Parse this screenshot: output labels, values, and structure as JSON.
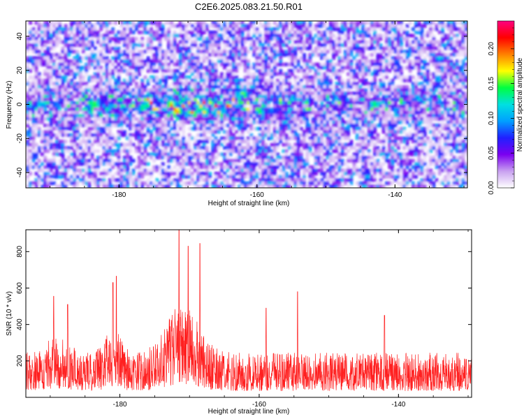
{
  "title": "C2E6.2025.083.21.50.R01",
  "chart_data": [
    {
      "type": "heatmap",
      "title": "C2E6.2025.083.21.50.R01",
      "xlabel": "Height of straight line (km)",
      "ylabel": "Frequency (Hz)",
      "xlim": [
        -193.5,
        -129.5
      ],
      "ylim": [
        -49,
        49
      ],
      "x_ticks": [
        -180,
        -160,
        -140
      ],
      "x_tick_labels": [
        "-180",
        "-160",
        "-140"
      ],
      "y_ticks": [
        -40,
        -20,
        0,
        20,
        40
      ],
      "y_tick_labels": [
        "-40",
        "-20",
        "0",
        "20",
        "40"
      ],
      "colorbar": {
        "label": "Normalized spectral amplitude",
        "range": [
          0,
          0.24
        ],
        "ticks": [
          0,
          0.05,
          0.1,
          0.15,
          0.2
        ],
        "tick_labels": [
          "0.00",
          "0.05",
          "0.10",
          "0.15",
          "0.20"
        ],
        "colormap": [
          "#ffffff",
          "#c8a0f0",
          "#7b00f0",
          "#2020ff",
          "#00a0ff",
          "#00e0e0",
          "#00ff40",
          "#ffff00",
          "#ff8000",
          "#ff0000",
          "#ff0080"
        ]
      },
      "hot_spots": [
        {
          "x": -183.5,
          "y": 0,
          "amp": 0.2
        },
        {
          "x": -176.5,
          "y": -2,
          "amp": 0.18
        },
        {
          "x": -171.5,
          "y": -4,
          "amp": 0.23
        },
        {
          "x": -169.5,
          "y": -5,
          "amp": 0.2
        },
        {
          "x": -167.5,
          "y": -4,
          "amp": 0.18
        },
        {
          "x": -165,
          "y": -4,
          "amp": 0.15
        },
        {
          "x": -162,
          "y": 7,
          "amp": 0.17
        },
        {
          "x": -159.5,
          "y": -4,
          "amp": 0.16
        },
        {
          "x": -143,
          "y": 0,
          "amp": 0.18
        },
        {
          "x": -133.5,
          "y": 27,
          "amp": 0.15
        },
        {
          "x": -191.5,
          "y": 0,
          "amp": 0.14
        },
        {
          "x": -136.5,
          "y": 3,
          "amp": 0.12
        }
      ],
      "grid": false
    },
    {
      "type": "line",
      "xlabel": "Height of straight line (km)",
      "ylabel": "SNR (10 * v/v)",
      "xlim": [
        -193.5,
        -129.5
      ],
      "ylim": [
        0,
        920
      ],
      "x_ticks": [
        -180,
        -160,
        -140
      ],
      "x_tick_labels": [
        "-180",
        "-160",
        "-140"
      ],
      "y_ticks": [
        200,
        400,
        600,
        800
      ],
      "y_tick_labels": [
        "200",
        "400",
        "600",
        "800"
      ],
      "series_color": "#ff2020",
      "peaks": [
        {
          "x": -181,
          "y": 630
        },
        {
          "x": -180.5,
          "y": 665
        },
        {
          "x": -171.5,
          "y": 920
        },
        {
          "x": -170.2,
          "y": 830
        },
        {
          "x": -168.5,
          "y": 845
        },
        {
          "x": -154.5,
          "y": 580
        },
        {
          "x": -189.5,
          "y": 555
        },
        {
          "x": -187.5,
          "y": 510
        },
        {
          "x": -159,
          "y": 490
        },
        {
          "x": -142,
          "y": 450
        }
      ],
      "baseline_mean": 140,
      "grid": false
    }
  ]
}
